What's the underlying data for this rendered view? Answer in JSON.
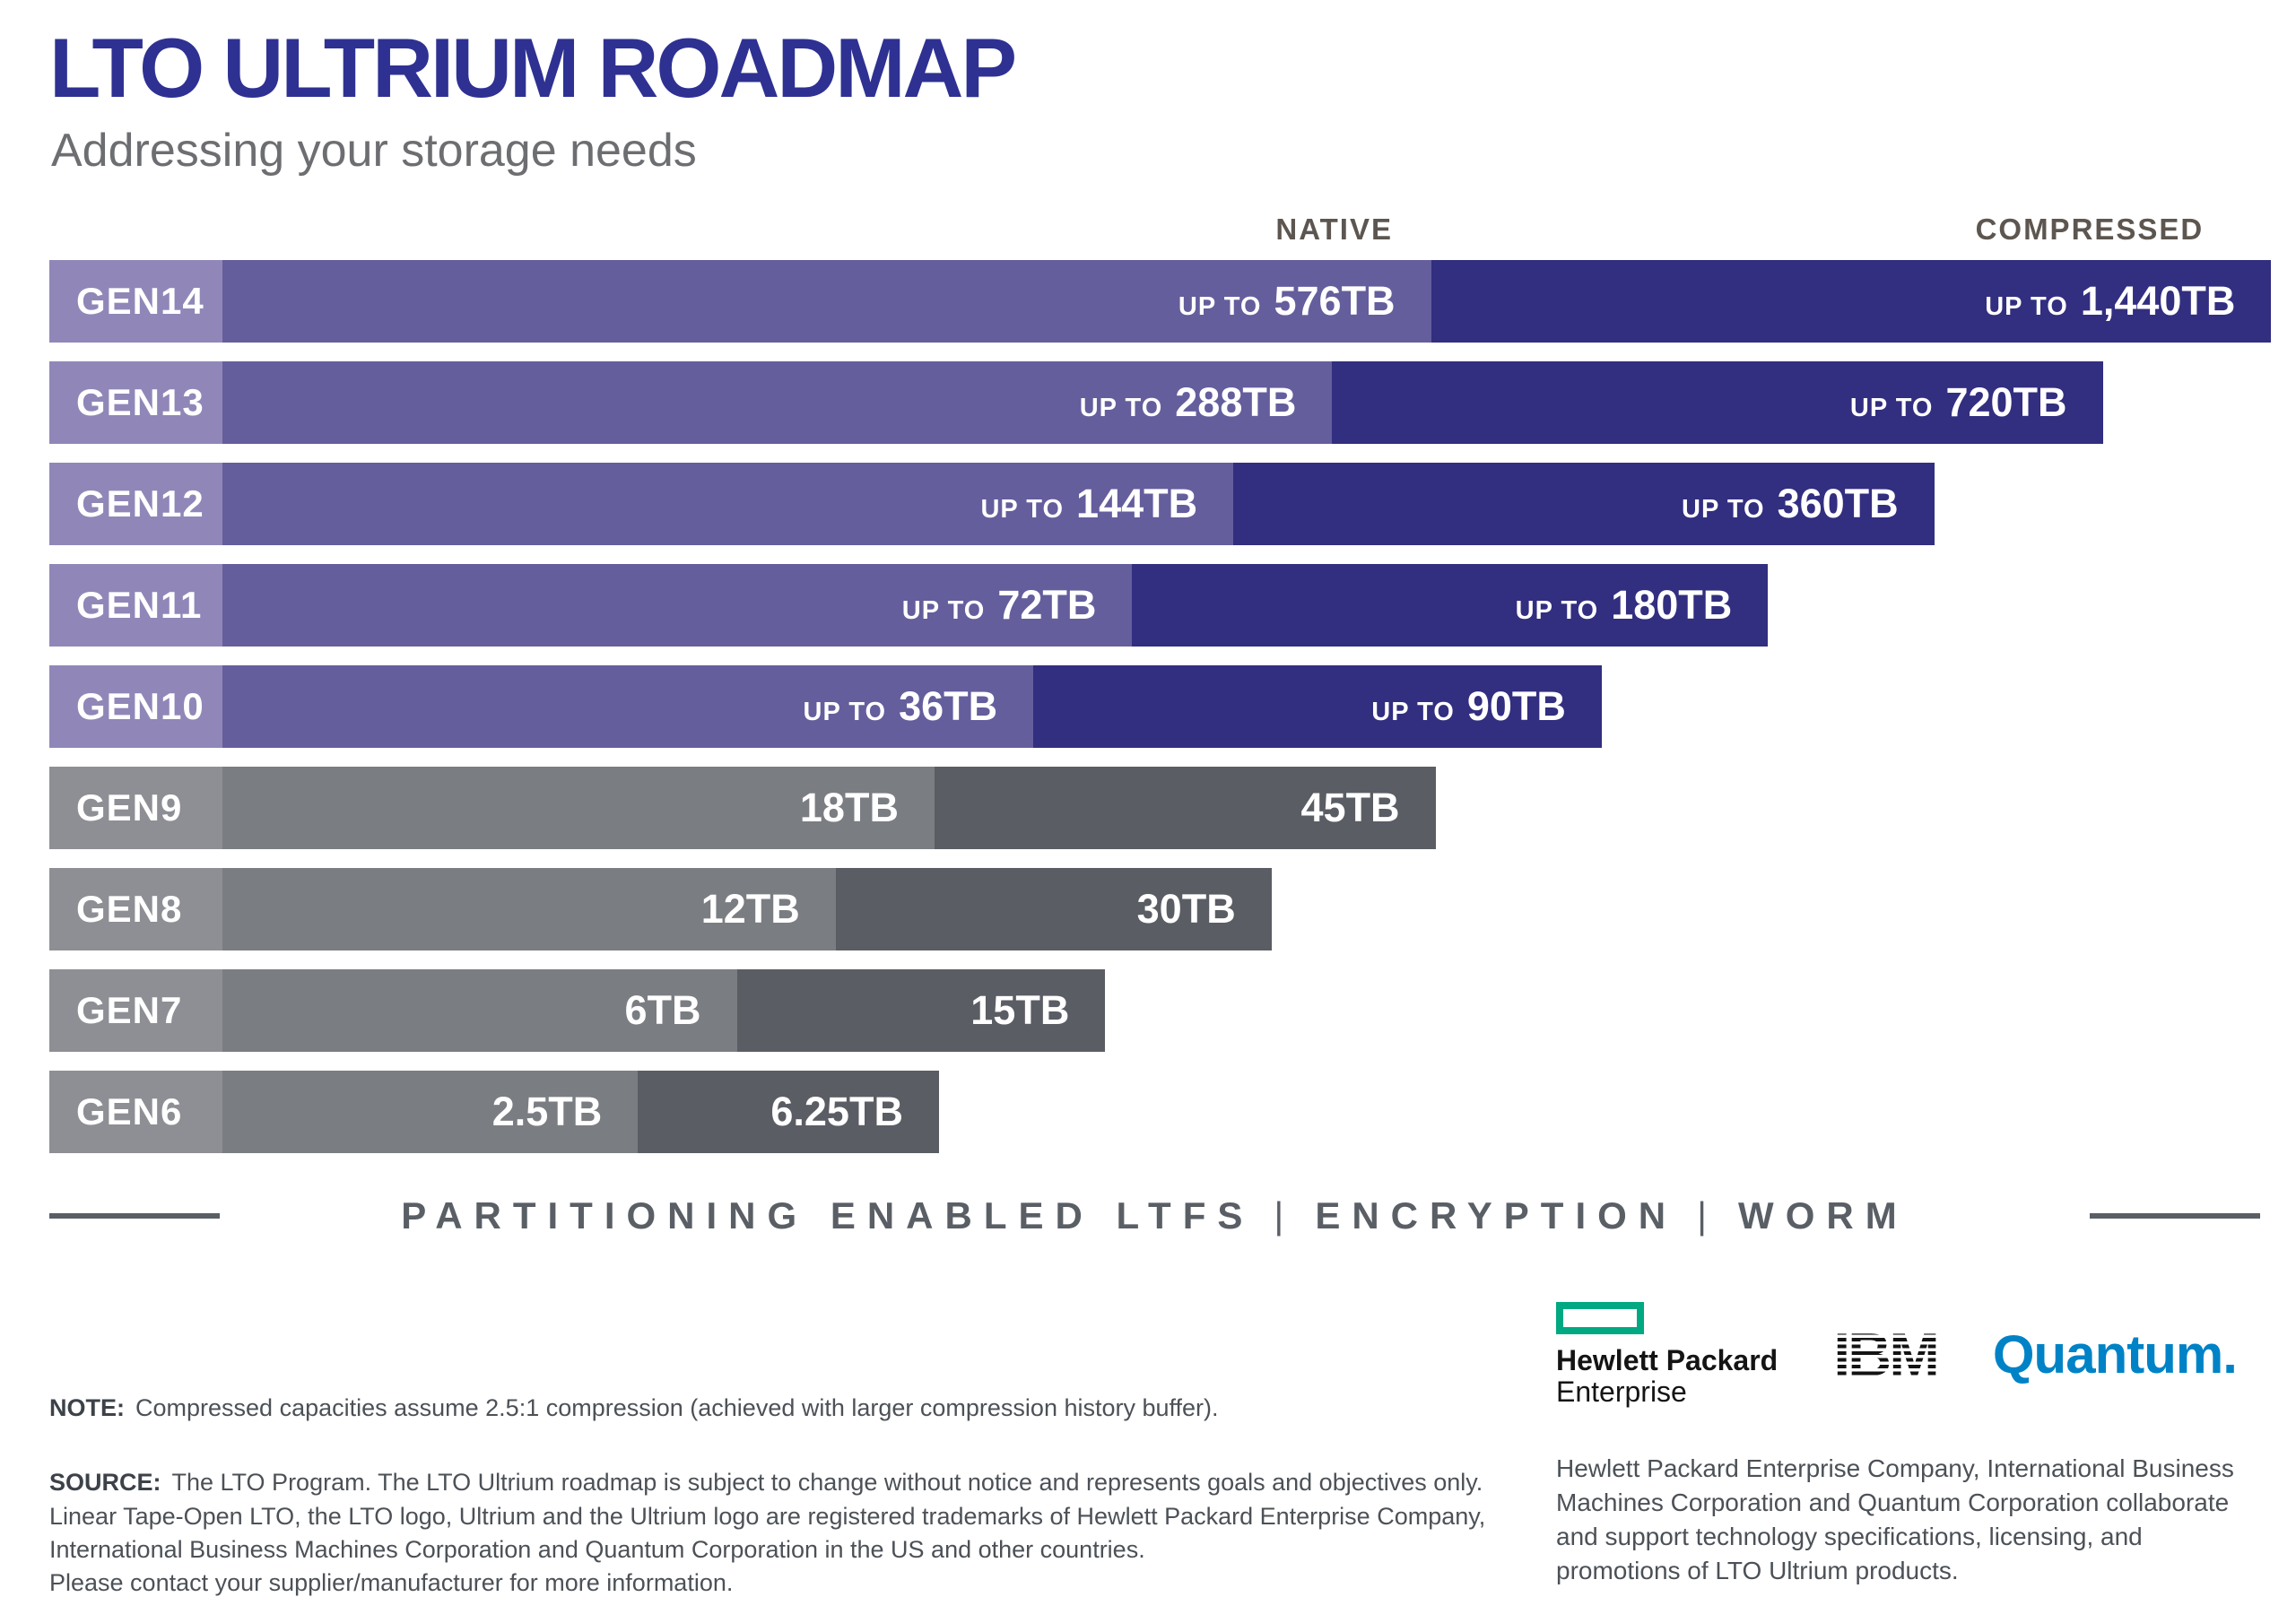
{
  "header": {
    "title": "LTO ULTRIUM ROADMAP",
    "subtitle": "Addressing your storage needs"
  },
  "chart_data": {
    "type": "bar",
    "orientation": "horizontal",
    "title": "LTO ULTRIUM ROADMAP",
    "subtitle": "Addressing your storage needs",
    "unit": "TB",
    "compression_assumption": "2.5:1",
    "column_headers": {
      "native": "NATIVE",
      "compressed": "COMPRESSED"
    },
    "categories": [
      "GEN14",
      "GEN13",
      "GEN12",
      "GEN11",
      "GEN10",
      "GEN9",
      "GEN8",
      "GEN7",
      "GEN6"
    ],
    "series": [
      {
        "name": "Native capacity (TB)",
        "values": [
          576,
          288,
          144,
          72,
          36,
          18,
          12,
          6,
          2.5
        ]
      },
      {
        "name": "Compressed capacity (TB)",
        "values": [
          1440,
          720,
          360,
          180,
          90,
          45,
          30,
          15,
          6.25
        ]
      }
    ],
    "bar_geometry": {
      "label_width_pct": 7.7
    },
    "rows": [
      {
        "gen": "GEN14",
        "prefix": "UP TO",
        "native_label": "576TB",
        "compressed_label": "1,440TB",
        "native_tb": 576,
        "compressed_tb": 1440,
        "theme": "purple",
        "native_width_pct": 61.5,
        "compressed_end_pct": 98.9
      },
      {
        "gen": "GEN13",
        "prefix": "UP TO",
        "native_label": "288TB",
        "compressed_label": "720TB",
        "native_tb": 288,
        "compressed_tb": 720,
        "theme": "purple",
        "native_width_pct": 57.1,
        "compressed_end_pct": 91.4
      },
      {
        "gen": "GEN12",
        "prefix": "UP TO",
        "native_label": "144TB",
        "compressed_label": "360TB",
        "native_tb": 144,
        "compressed_tb": 360,
        "theme": "purple",
        "native_width_pct": 52.7,
        "compressed_end_pct": 83.9
      },
      {
        "gen": "GEN11",
        "prefix": "UP TO",
        "native_label": "72TB",
        "compressed_label": "180TB",
        "native_tb": 72,
        "compressed_tb": 180,
        "theme": "purple",
        "native_width_pct": 48.2,
        "compressed_end_pct": 76.5
      },
      {
        "gen": "GEN10",
        "prefix": "UP TO",
        "native_label": "36TB",
        "compressed_label": "90TB",
        "native_tb": 36,
        "compressed_tb": 90,
        "theme": "purple",
        "native_width_pct": 43.8,
        "compressed_end_pct": 69.1
      },
      {
        "gen": "GEN9",
        "prefix": "",
        "native_label": "18TB",
        "compressed_label": "45TB",
        "native_tb": 18,
        "compressed_tb": 45,
        "theme": "gray",
        "native_width_pct": 39.4,
        "compressed_end_pct": 61.7
      },
      {
        "gen": "GEN8",
        "prefix": "",
        "native_label": "12TB",
        "compressed_label": "30TB",
        "native_tb": 12,
        "compressed_tb": 30,
        "theme": "gray",
        "native_width_pct": 35.0,
        "compressed_end_pct": 54.4
      },
      {
        "gen": "GEN7",
        "prefix": "",
        "native_label": "6TB",
        "compressed_label": "15TB",
        "native_tb": 6,
        "compressed_tb": 15,
        "theme": "gray",
        "native_width_pct": 30.6,
        "compressed_end_pct": 47.0
      },
      {
        "gen": "GEN6",
        "prefix": "",
        "native_label": "2.5TB",
        "compressed_label": "6.25TB",
        "native_tb": 2.5,
        "compressed_tb": 6.25,
        "theme": "gray",
        "native_width_pct": 26.2,
        "compressed_end_pct": 39.6
      }
    ]
  },
  "features_banner": {
    "items": [
      "PARTITIONING ENABLED LTFS",
      "ENCRYPTION",
      "WORM"
    ],
    "separator": "|"
  },
  "footnotes": {
    "note_label": "NOTE:",
    "note_text": "Compressed capacities assume 2.5:1 compression (achieved with larger compression history buffer).",
    "source_label": "SOURCE:",
    "source_lines": [
      "The LTO Program. The LTO Ultrium roadmap is subject to change without notice and represents goals and objectives only.",
      "Linear Tape-Open LTO, the LTO logo, Ultrium and the Ultrium logo are registered trademarks of Hewlett Packard Enterprise Company,",
      "International Business Machines Corporation and Quantum Corporation in the US and other countries.",
      "Please contact your supplier/manufacturer for more information."
    ]
  },
  "logos": {
    "hpe": {
      "line1": "Hewlett Packard",
      "line2": "Enterprise"
    },
    "ibm": "IBM",
    "quantum": "Quantum."
  },
  "collaboration": {
    "text": "Hewlett Packard Enterprise Company, International Business Machines Corporation and Quantum Corporation collaborate and support technology specifications, licensing, and promotions of LTO Ultrium products."
  },
  "colors": {
    "title_blue": "#2e3192",
    "subtitle_gray": "#6d6e71",
    "header_gray": "#5d5650",
    "purple_label": "#9087b8",
    "purple_native": "#645e9d",
    "purple_compressed": "#322e80",
    "gray_label": "#8d8f94",
    "gray_native": "#7a7d81",
    "gray_compressed": "#5a5d64",
    "banner_gray": "#5a5f66",
    "footnote_gray": "#4c5157",
    "footnote_dark": "#3d4249",
    "hpe_green": "#01a982",
    "quantum_blue": "#0082c6"
  }
}
